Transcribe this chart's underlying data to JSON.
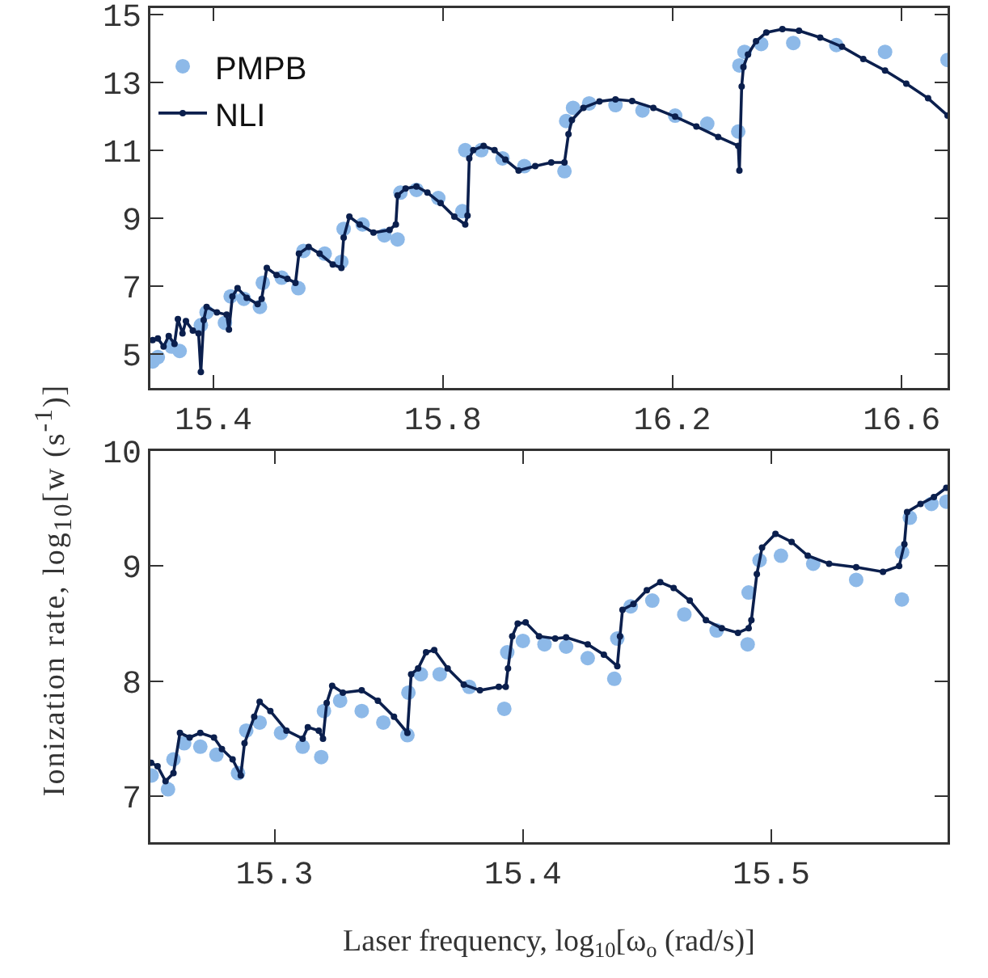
{
  "chart_data": [
    {
      "type": "line",
      "xlim": [
        15.29,
        16.68
      ],
      "ylim": [
        4,
        15.2
      ],
      "xticks": [
        15.4,
        15.8,
        16.2,
        16.6
      ],
      "yticks": [
        5,
        7,
        9,
        11,
        13,
        15
      ],
      "legend": "top left",
      "marker": "circle",
      "series": [
        {
          "name": "PMPB",
          "type": "scatter",
          "color": "#8db9e8",
          "x": [
            15.294,
            15.303,
            15.327,
            15.341,
            15.378,
            15.388,
            15.42,
            15.43,
            15.453,
            15.481,
            15.486,
            15.519,
            15.548,
            15.557,
            15.594,
            15.623,
            15.627,
            15.66,
            15.698,
            15.721,
            15.726,
            15.754,
            15.792,
            15.834,
            15.839,
            15.867,
            15.904,
            15.942,
            16.012,
            16.015,
            16.027,
            16.055,
            16.101,
            16.148,
            16.205,
            16.261,
            16.315,
            16.317,
            16.326,
            16.355,
            16.411,
            16.486,
            16.571,
            16.68
          ],
          "values": [
            4.78,
            4.91,
            5.22,
            5.09,
            5.85,
            6.23,
            5.92,
            6.7,
            6.63,
            6.39,
            7.1,
            7.25,
            6.94,
            8.04,
            7.96,
            7.72,
            8.69,
            8.82,
            8.5,
            8.38,
            9.76,
            9.84,
            9.6,
            9.21,
            11.01,
            11.01,
            10.77,
            10.54,
            10.39,
            11.87,
            12.26,
            12.39,
            12.34,
            12.18,
            12.03,
            11.79,
            11.56,
            13.51,
            13.91,
            14.14,
            14.17,
            14.11,
            13.91,
            13.67
          ]
        },
        {
          "name": "NLI",
          "type": "line",
          "color": "#0b1f4d",
          "x": [
            15.294,
            15.303,
            15.313,
            15.322,
            15.332,
            15.338,
            15.346,
            15.352,
            15.364,
            15.374,
            15.378,
            15.383,
            15.388,
            15.406,
            15.423,
            15.427,
            15.433,
            15.442,
            15.458,
            15.477,
            15.484,
            15.493,
            15.51,
            15.529,
            15.543,
            15.549,
            15.566,
            15.585,
            15.608,
            15.623,
            15.627,
            15.637,
            15.655,
            15.679,
            15.707,
            15.718,
            15.721,
            15.735,
            15.754,
            15.773,
            15.796,
            15.82,
            15.839,
            15.843,
            15.846,
            15.853,
            15.871,
            15.89,
            15.909,
            15.932,
            15.961,
            15.989,
            16.012,
            16.019,
            16.025,
            16.045,
            16.073,
            16.101,
            16.13,
            16.167,
            16.205,
            16.242,
            16.28,
            16.315,
            16.317,
            16.321,
            16.324,
            16.332,
            16.346,
            16.364,
            16.392,
            16.421,
            16.458,
            16.496,
            16.533,
            16.571,
            16.608,
            16.646,
            16.68
          ],
          "values": [
            5.41,
            5.46,
            5.22,
            5.53,
            5.3,
            6.03,
            5.61,
            5.97,
            5.69,
            5.61,
            4.47,
            6.0,
            6.39,
            6.23,
            6.16,
            5.72,
            6.7,
            6.94,
            6.66,
            6.47,
            6.63,
            7.54,
            7.33,
            7.22,
            7.1,
            7.96,
            8.16,
            7.96,
            7.64,
            7.54,
            8.43,
            9.05,
            8.82,
            8.58,
            8.66,
            8.82,
            9.68,
            9.88,
            9.94,
            9.76,
            9.45,
            9.05,
            8.82,
            9.08,
            10.77,
            11.01,
            11.14,
            11.01,
            10.73,
            10.41,
            10.54,
            10.65,
            10.65,
            11.48,
            11.9,
            12.26,
            12.45,
            12.51,
            12.46,
            12.26,
            12.0,
            11.71,
            11.4,
            11.14,
            10.41,
            12.89,
            13.46,
            13.83,
            14.22,
            14.48,
            14.58,
            14.53,
            14.33,
            14.06,
            13.7,
            13.36,
            12.97,
            12.54,
            12.03
          ]
        }
      ]
    },
    {
      "type": "line",
      "xlim": [
        15.25,
        15.571
      ],
      "ylim": [
        6.6,
        10
      ],
      "xticks": [
        15.3,
        15.4,
        15.5
      ],
      "yticks": [
        7,
        8,
        9,
        10
      ],
      "marker": "circle",
      "xlabel": "Laser frequency, log$_{10}$[ω$_{o}$ (rad/s)]",
      "ylabel": "Ionization rate, log$_{10}$[w (s$^{-1}$)]",
      "series": [
        {
          "type": "scatter",
          "color": "#8db9e8",
          "x": [
            15.2505,
            15.2571,
            15.2593,
            15.2636,
            15.2701,
            15.2766,
            15.2853,
            15.2886,
            15.294,
            15.3026,
            15.3113,
            15.3188,
            15.3199,
            15.3264,
            15.3351,
            15.3438,
            15.3535,
            15.3539,
            15.3589,
            15.3665,
            15.3784,
            15.3925,
            15.3937,
            15.4,
            15.4087,
            15.4174,
            15.4261,
            15.4368,
            15.438,
            15.4434,
            15.4521,
            15.465,
            15.478,
            15.4905,
            15.4909,
            15.4953,
            15.5039,
            15.5169,
            15.5342,
            15.5526,
            15.5527,
            15.5558,
            15.5645,
            15.5705
          ],
          "values": [
            7.18,
            7.06,
            7.32,
            7.46,
            7.43,
            7.36,
            7.2,
            7.57,
            7.64,
            7.55,
            7.43,
            7.34,
            7.74,
            7.83,
            7.74,
            7.64,
            7.53,
            7.9,
            8.06,
            8.06,
            7.95,
            7.76,
            8.25,
            8.35,
            8.32,
            8.3,
            8.2,
            8.02,
            8.37,
            8.65,
            8.7,
            8.58,
            8.44,
            8.32,
            8.77,
            9.05,
            9.09,
            9.02,
            8.88,
            8.71,
            9.12,
            9.42,
            9.54,
            9.56
          ]
        },
        {
          "type": "line",
          "color": "#0b1f4d",
          "x": [
            15.2503,
            15.2529,
            15.2561,
            15.2593,
            15.2619,
            15.2658,
            15.2701,
            15.2756,
            15.2788,
            15.2831,
            15.2864,
            15.2879,
            15.2918,
            15.294,
            15.2983,
            15.3048,
            15.3113,
            15.3134,
            15.3178,
            15.3195,
            15.321,
            15.3232,
            15.3275,
            15.3351,
            15.3416,
            15.3481,
            15.3535,
            15.355,
            15.3578,
            15.361,
            15.3643,
            15.3697,
            15.3762,
            15.3827,
            15.3903,
            15.3931,
            15.394,
            15.3957,
            15.3979,
            15.4011,
            15.4065,
            15.413,
            15.4174,
            15.4261,
            15.4326,
            15.438,
            15.4391,
            15.4401,
            15.4445,
            15.4499,
            15.4553,
            15.4607,
            15.4672,
            15.4737,
            15.4801,
            15.4866,
            15.4909,
            15.492,
            15.4942,
            15.4963,
            15.5017,
            15.5082,
            15.5147,
            15.5233,
            15.5342,
            15.545,
            15.5515,
            15.5536,
            15.5547,
            15.5601,
            15.5655,
            15.5705
          ],
          "values": [
            7.29,
            7.26,
            7.13,
            7.2,
            7.55,
            7.51,
            7.55,
            7.51,
            7.41,
            7.32,
            7.18,
            7.46,
            7.69,
            7.82,
            7.74,
            7.57,
            7.5,
            7.6,
            7.57,
            7.5,
            7.81,
            7.96,
            7.9,
            7.92,
            7.83,
            7.69,
            7.55,
            8.06,
            8.11,
            8.25,
            8.27,
            8.11,
            7.97,
            7.92,
            7.95,
            7.95,
            8.11,
            8.39,
            8.5,
            8.51,
            8.39,
            8.37,
            8.38,
            8.32,
            8.23,
            8.13,
            8.39,
            8.62,
            8.67,
            8.79,
            8.86,
            8.81,
            8.7,
            8.53,
            8.46,
            8.42,
            8.46,
            8.53,
            8.93,
            9.16,
            9.28,
            9.21,
            9.09,
            9.02,
            8.99,
            8.95,
            9.0,
            9.19,
            9.47,
            9.54,
            9.6,
            9.68
          ]
        }
      ]
    }
  ]
}
